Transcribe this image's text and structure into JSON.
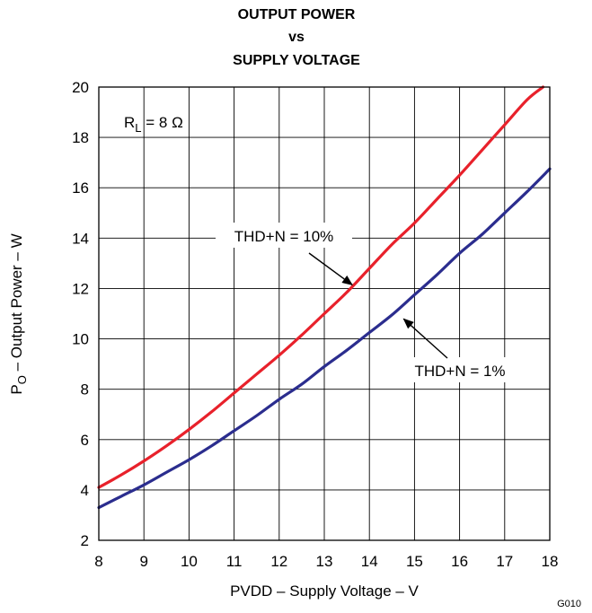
{
  "chart_data": {
    "type": "line",
    "title": [
      "OUTPUT POWER",
      "vs",
      "SUPPLY VOLTAGE"
    ],
    "xlabel": "PVDD – Supply Voltage – V",
    "ylabel": {
      "main": "P",
      "sub": "O",
      "rest": " – Output Power – W"
    },
    "xlim": [
      8,
      18
    ],
    "ylim": [
      2,
      20
    ],
    "x_ticks": [
      8,
      9,
      10,
      11,
      12,
      13,
      14,
      15,
      16,
      17,
      18
    ],
    "y_ticks": [
      2,
      4,
      6,
      8,
      10,
      12,
      14,
      16,
      18,
      20
    ],
    "grid": true,
    "condition": {
      "main": "R",
      "sub": "L",
      "rest": " = 8 Ω"
    },
    "figure_id": "G010",
    "series": [
      {
        "name": "THD+N = 10%",
        "color": "#e8212b",
        "x": [
          8,
          8.5,
          9,
          9.5,
          10,
          10.5,
          11,
          11.5,
          12,
          12.5,
          13,
          13.5,
          14,
          14.5,
          15,
          15.5,
          16,
          16.5,
          17,
          17.5,
          17.85
        ],
        "y": [
          4.1,
          4.6,
          5.15,
          5.75,
          6.4,
          7.1,
          7.85,
          8.6,
          9.35,
          10.15,
          11.0,
          11.85,
          12.8,
          13.75,
          14.6,
          15.55,
          16.5,
          17.5,
          18.5,
          19.5,
          20.0
        ]
      },
      {
        "name": "THD+N = 1%",
        "color": "#2b2d8e",
        "x": [
          8,
          8.5,
          9,
          9.5,
          10,
          10.5,
          11,
          11.5,
          12,
          12.5,
          13,
          13.5,
          14,
          14.5,
          15,
          15.5,
          16,
          16.5,
          17,
          17.5,
          18
        ],
        "y": [
          3.3,
          3.75,
          4.2,
          4.7,
          5.2,
          5.75,
          6.35,
          6.95,
          7.6,
          8.2,
          8.9,
          9.55,
          10.25,
          10.95,
          11.75,
          12.55,
          13.4,
          14.15,
          15.0,
          15.85,
          16.75
        ]
      }
    ],
    "annotations": [
      {
        "text": "THD+N = 10%",
        "arrow_to": [
          13.7,
          12.0
        ]
      },
      {
        "text": "THD+N = 1%",
        "arrow_to": [
          14.7,
          10.9
        ]
      }
    ]
  }
}
